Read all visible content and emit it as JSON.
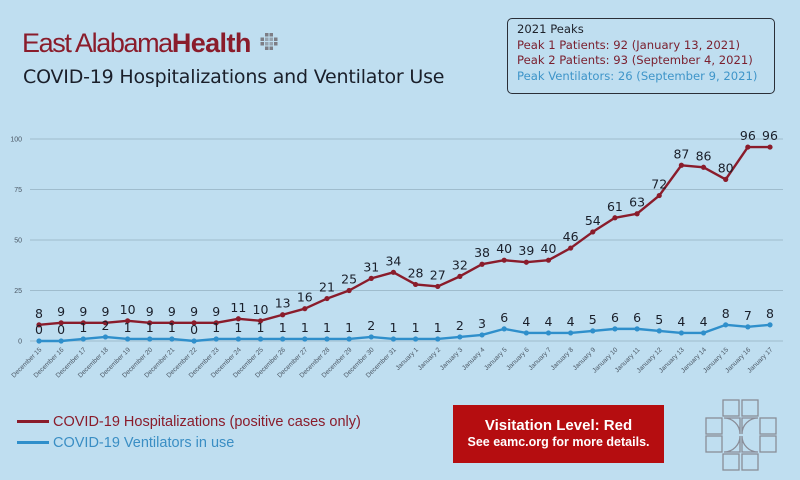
{
  "brand": {
    "name_light": "East Alabama",
    "name_bold": "Health",
    "color": "#8a1c2b",
    "icon": "cross-grid-logo-icon"
  },
  "title": "COVID-19 Hospitalizations and Ventilator Use",
  "peaks_box": {
    "heading": "2021 Peaks",
    "peak1": "Peak 1 Patients: 92 (January 13, 2021)",
    "peak2": "Peak 2 Patients: 93 (September 4, 2021)",
    "peak_vent": "Peak Ventilators: 26 (September 9, 2021)"
  },
  "legend": {
    "hospitalizations": "COVID-19 Hospitalizations (positive cases only)",
    "ventilators": "COVID-19 Ventilators in use"
  },
  "visitation": {
    "line1": "Visitation Level: Red",
    "line2": "See eamc.org for more details.",
    "color": "#b50d10"
  },
  "footer_icon": "cross-outline-logo-icon",
  "chart_data": {
    "type": "line",
    "title": "COVID-19 Hospitalizations and Ventilator Use",
    "xlabel": "",
    "ylabel": "",
    "ylim": [
      0,
      100
    ],
    "yticks": [
      0,
      25,
      50,
      75,
      100
    ],
    "grid": true,
    "legend_position": "bottom-left",
    "categories": [
      "December 15",
      "December 16",
      "December 17",
      "December 18",
      "December 19",
      "December 20",
      "December 21",
      "December 22",
      "December 23",
      "December 24",
      "December 25",
      "December 26",
      "December 27",
      "December 28",
      "December 29",
      "December 30",
      "December 31",
      "January 1",
      "January 2",
      "January 3",
      "January 4",
      "January 5",
      "January 6",
      "January 7",
      "January 8",
      "January 9",
      "January 10",
      "January 11",
      "January 12",
      "January 13",
      "January 14",
      "January 15",
      "January 16",
      "January 17"
    ],
    "series": [
      {
        "name": "COVID-19 Hospitalizations (positive cases only)",
        "color": "#8a1c2b",
        "values": [
          8,
          9,
          9,
          9,
          10,
          9,
          9,
          9,
          9,
          11,
          10,
          13,
          16,
          21,
          25,
          31,
          34,
          28,
          27,
          32,
          38,
          40,
          39,
          40,
          46,
          54,
          61,
          63,
          72,
          87,
          86,
          80,
          96,
          96
        ]
      },
      {
        "name": "COVID-19 Ventilators in use",
        "color": "#2f8fcb",
        "values": [
          0,
          0,
          1,
          2,
          1,
          1,
          1,
          0,
          1,
          1,
          1,
          1,
          1,
          1,
          1,
          2,
          1,
          1,
          1,
          2,
          3,
          6,
          4,
          4,
          4,
          5,
          6,
          6,
          5,
          4,
          4,
          8,
          7,
          8
        ]
      }
    ]
  }
}
